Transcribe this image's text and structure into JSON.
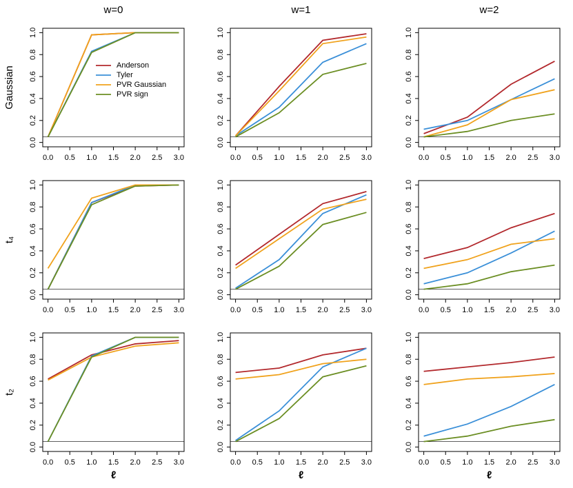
{
  "chart_data": [
    {
      "type": "line",
      "title": "w=0",
      "ylabel": "Gaussian",
      "x": [
        0,
        1,
        2,
        3
      ],
      "legend": "right",
      "hline": 0.05,
      "series": [
        {
          "name": "Anderson",
          "color": "#b2282c",
          "values": [
            0.05,
            0.98,
            1.0,
            1.0
          ]
        },
        {
          "name": "Tyler",
          "color": "#3a8fd8",
          "values": [
            0.05,
            0.83,
            1.0,
            1.0
          ]
        },
        {
          "name": "PVR Gaussian",
          "color": "#f0a21c",
          "values": [
            0.05,
            0.98,
            1.0,
            1.0
          ]
        },
        {
          "name": "PVR sign",
          "color": "#6b8e23",
          "values": [
            0.05,
            0.82,
            1.0,
            1.0
          ]
        }
      ],
      "xlim": [
        -0.12,
        3.12
      ],
      "ylim": [
        -0.04,
        1.04
      ],
      "xticks": [
        {
          "value": 0,
          "label": "0.0"
        },
        0.5,
        {
          "value": 1,
          "label": "1.0"
        },
        1.5,
        {
          "value": 2,
          "label": "2.0"
        },
        2.5,
        {
          "value": 3,
          "label": "3.0"
        }
      ],
      "yticks": [
        {
          "value": 0,
          "label": "0.0"
        },
        0.2,
        0.4,
        0.6,
        0.8,
        {
          "value": 1,
          "label": "1.0"
        }
      ]
    },
    {
      "type": "line",
      "title": "w=1",
      "x": [
        0,
        1,
        2,
        3
      ],
      "hline": 0.05,
      "series": [
        {
          "color": "#b2282c",
          "values": [
            0.06,
            0.51,
            0.93,
            0.99
          ]
        },
        {
          "color": "#3a8fd8",
          "values": [
            0.06,
            0.32,
            0.73,
            0.9
          ]
        },
        {
          "color": "#f0a21c",
          "values": [
            0.06,
            0.47,
            0.9,
            0.96
          ]
        },
        {
          "color": "#6b8e23",
          "values": [
            0.05,
            0.27,
            0.62,
            0.72
          ]
        }
      ],
      "xlim": [
        -0.12,
        3.12
      ],
      "ylim": [
        -0.04,
        1.04
      ],
      "xticks": [
        {
          "value": 0,
          "label": "0.0"
        },
        0.5,
        {
          "value": 1,
          "label": "1.0"
        },
        1.5,
        {
          "value": 2,
          "label": "2.0"
        },
        2.5,
        {
          "value": 3,
          "label": "3.0"
        }
      ],
      "yticks": [
        {
          "value": 0,
          "label": "0.0"
        },
        0.2,
        0.4,
        0.6,
        0.8,
        {
          "value": 1,
          "label": "1.0"
        }
      ]
    },
    {
      "type": "line",
      "title": "w=2",
      "x": [
        0,
        1,
        2,
        3
      ],
      "hline": 0.05,
      "series": [
        {
          "color": "#b2282c",
          "values": [
            0.08,
            0.23,
            0.53,
            0.74
          ]
        },
        {
          "color": "#3a8fd8",
          "values": [
            0.12,
            0.2,
            0.39,
            0.58
          ]
        },
        {
          "color": "#f0a21c",
          "values": [
            0.05,
            0.16,
            0.39,
            0.48
          ]
        },
        {
          "color": "#6b8e23",
          "values": [
            0.05,
            0.1,
            0.2,
            0.26
          ]
        }
      ],
      "xlim": [
        -0.12,
        3.12
      ],
      "ylim": [
        -0.04,
        1.04
      ],
      "xticks": [
        {
          "value": 0,
          "label": "0.0"
        },
        0.5,
        {
          "value": 1,
          "label": "1.0"
        },
        1.5,
        {
          "value": 2,
          "label": "2.0"
        },
        2.5,
        {
          "value": 3,
          "label": "3.0"
        }
      ],
      "yticks": [
        {
          "value": 0,
          "label": "0.0"
        },
        0.2,
        0.4,
        0.6,
        0.8,
        {
          "value": 1,
          "label": "1.0"
        }
      ]
    },
    {
      "type": "line",
      "ylabel": "t₄",
      "x": [
        0,
        1,
        2,
        3
      ],
      "hline": 0.05,
      "series": [
        {
          "color": "#b2282c",
          "values": [
            0.05,
            0.84,
            0.99,
            1.0
          ]
        },
        {
          "color": "#3a8fd8",
          "values": [
            0.05,
            0.84,
            1.0,
            1.0
          ]
        },
        {
          "color": "#f0a21c",
          "values": [
            0.24,
            0.88,
            1.0,
            1.0
          ]
        },
        {
          "color": "#6b8e23",
          "values": [
            0.05,
            0.82,
            0.99,
            1.0
          ]
        }
      ],
      "xlim": [
        -0.12,
        3.12
      ],
      "ylim": [
        -0.04,
        1.04
      ],
      "xticks": [
        {
          "value": 0,
          "label": "0.0"
        },
        0.5,
        {
          "value": 1,
          "label": "1.0"
        },
        1.5,
        {
          "value": 2,
          "label": "2.0"
        },
        2.5,
        {
          "value": 3,
          "label": "3.0"
        }
      ],
      "yticks": [
        {
          "value": 0,
          "label": "0.0"
        },
        0.2,
        0.4,
        0.6,
        0.8,
        {
          "value": 1,
          "label": "1.0"
        }
      ]
    },
    {
      "type": "line",
      "x": [
        0,
        1,
        2,
        3
      ],
      "hline": 0.05,
      "series": [
        {
          "color": "#b2282c",
          "values": [
            0.27,
            0.55,
            0.83,
            0.94
          ]
        },
        {
          "color": "#3a8fd8",
          "values": [
            0.06,
            0.32,
            0.74,
            0.91
          ]
        },
        {
          "color": "#f0a21c",
          "values": [
            0.24,
            0.51,
            0.78,
            0.87
          ]
        },
        {
          "color": "#6b8e23",
          "values": [
            0.05,
            0.26,
            0.64,
            0.75
          ]
        }
      ],
      "xlim": [
        -0.12,
        3.12
      ],
      "ylim": [
        -0.04,
        1.04
      ],
      "xticks": [
        {
          "value": 0,
          "label": "0.0"
        },
        0.5,
        {
          "value": 1,
          "label": "1.0"
        },
        1.5,
        {
          "value": 2,
          "label": "2.0"
        },
        2.5,
        {
          "value": 3,
          "label": "3.0"
        }
      ],
      "yticks": [
        {
          "value": 0,
          "label": "0.0"
        },
        0.2,
        0.4,
        0.6,
        0.8,
        {
          "value": 1,
          "label": "1.0"
        }
      ]
    },
    {
      "type": "line",
      "x": [
        0,
        1,
        2,
        3
      ],
      "hline": 0.05,
      "series": [
        {
          "color": "#b2282c",
          "values": [
            0.33,
            0.43,
            0.61,
            0.74
          ]
        },
        {
          "color": "#3a8fd8",
          "values": [
            0.1,
            0.2,
            0.38,
            0.58
          ]
        },
        {
          "color": "#f0a21c",
          "values": [
            0.24,
            0.32,
            0.46,
            0.51
          ]
        },
        {
          "color": "#6b8e23",
          "values": [
            0.05,
            0.1,
            0.21,
            0.27
          ]
        }
      ],
      "xlim": [
        -0.12,
        3.12
      ],
      "ylim": [
        -0.04,
        1.04
      ],
      "xticks": [
        {
          "value": 0,
          "label": "0.0"
        },
        0.5,
        {
          "value": 1,
          "label": "1.0"
        },
        1.5,
        {
          "value": 2,
          "label": "2.0"
        },
        2.5,
        {
          "value": 3,
          "label": "3.0"
        }
      ],
      "yticks": [
        {
          "value": 0,
          "label": "0.0"
        },
        0.2,
        0.4,
        0.6,
        0.8,
        {
          "value": 1,
          "label": "1.0"
        }
      ]
    },
    {
      "type": "line",
      "ylabel": "t₂",
      "xlabel": "ℓ",
      "x": [
        0,
        1,
        2,
        3
      ],
      "hline": 0.05,
      "series": [
        {
          "color": "#b2282c",
          "values": [
            0.62,
            0.84,
            0.94,
            0.97
          ]
        },
        {
          "color": "#3a8fd8",
          "values": [
            0.05,
            0.83,
            1.0,
            1.0
          ]
        },
        {
          "color": "#f0a21c",
          "values": [
            0.61,
            0.82,
            0.92,
            0.95
          ]
        },
        {
          "color": "#6b8e23",
          "values": [
            0.05,
            0.82,
            1.0,
            1.0
          ]
        }
      ],
      "xlim": [
        -0.12,
        3.12
      ],
      "ylim": [
        -0.04,
        1.04
      ],
      "xticks": [
        {
          "value": 0,
          "label": "0.0"
        },
        0.5,
        {
          "value": 1,
          "label": "1.0"
        },
        1.5,
        {
          "value": 2,
          "label": "2.0"
        },
        2.5,
        {
          "value": 3,
          "label": "3.0"
        }
      ],
      "yticks": [
        {
          "value": 0,
          "label": "0.0"
        },
        0.2,
        0.4,
        0.6,
        0.8,
        {
          "value": 1,
          "label": "1.0"
        }
      ]
    },
    {
      "type": "line",
      "xlabel": "ℓ",
      "x": [
        0,
        1,
        2,
        3
      ],
      "hline": 0.05,
      "series": [
        {
          "color": "#b2282c",
          "values": [
            0.68,
            0.72,
            0.84,
            0.9
          ]
        },
        {
          "color": "#3a8fd8",
          "values": [
            0.06,
            0.33,
            0.73,
            0.9
          ]
        },
        {
          "color": "#f0a21c",
          "values": [
            0.62,
            0.66,
            0.76,
            0.8
          ]
        },
        {
          "color": "#6b8e23",
          "values": [
            0.05,
            0.26,
            0.64,
            0.74
          ]
        }
      ],
      "xlim": [
        -0.12,
        3.12
      ],
      "ylim": [
        -0.04,
        1.04
      ],
      "xticks": [
        {
          "value": 0,
          "label": "0.0"
        },
        0.5,
        {
          "value": 1,
          "label": "1.0"
        },
        1.5,
        {
          "value": 2,
          "label": "2.0"
        },
        2.5,
        {
          "value": 3,
          "label": "3.0"
        }
      ],
      "yticks": [
        {
          "value": 0,
          "label": "0.0"
        },
        0.2,
        0.4,
        0.6,
        0.8,
        {
          "value": 1,
          "label": "1.0"
        }
      ]
    },
    {
      "type": "line",
      "xlabel": "ℓ",
      "x": [
        0,
        1,
        2,
        3
      ],
      "hline": 0.05,
      "series": [
        {
          "color": "#b2282c",
          "values": [
            0.69,
            0.73,
            0.77,
            0.82
          ]
        },
        {
          "color": "#3a8fd8",
          "values": [
            0.1,
            0.21,
            0.37,
            0.57
          ]
        },
        {
          "color": "#f0a21c",
          "values": [
            0.57,
            0.62,
            0.64,
            0.67
          ]
        },
        {
          "color": "#6b8e23",
          "values": [
            0.05,
            0.1,
            0.19,
            0.25
          ]
        }
      ],
      "xlim": [
        -0.12,
        3.12
      ],
      "ylim": [
        -0.04,
        1.04
      ],
      "xticks": [
        {
          "value": 0,
          "label": "0.0"
        },
        0.5,
        {
          "value": 1,
          "label": "1.0"
        },
        1.5,
        {
          "value": 2,
          "label": "2.0"
        },
        2.5,
        {
          "value": 3,
          "label": "3.0"
        }
      ],
      "yticks": [
        {
          "value": 0,
          "label": "0.0"
        },
        0.2,
        0.4,
        0.6,
        0.8,
        {
          "value": 1,
          "label": "1.0"
        }
      ]
    }
  ]
}
